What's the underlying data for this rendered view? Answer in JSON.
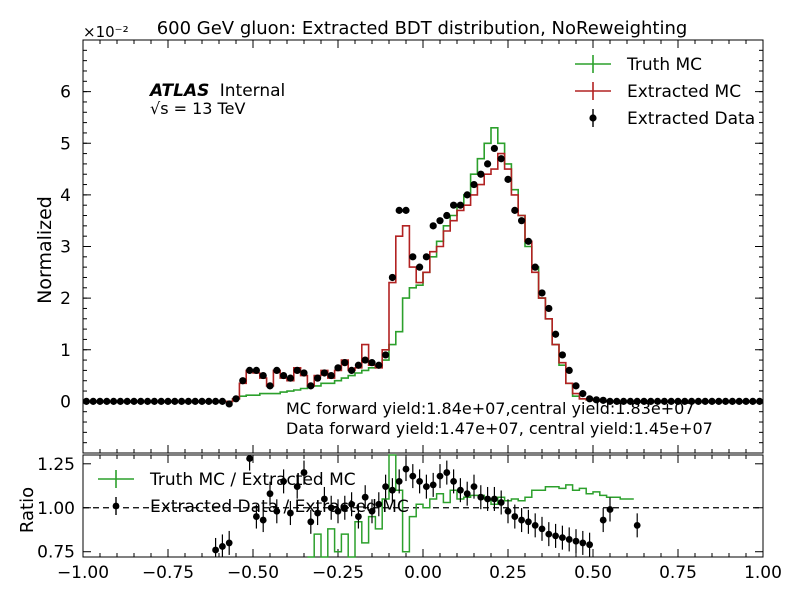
{
  "chart_data": [
    {
      "type": "step-histogram",
      "panel": "main",
      "title": "600 GeV gluon: Extracted BDT distribution, NoReweighting",
      "ylabel": "Normalized",
      "y_scale_label": "×10⁻²",
      "x_range": [
        -1.0,
        1.0
      ],
      "ylim": [
        -1,
        7
      ],
      "yticks": [
        0,
        1,
        2,
        3,
        4,
        5,
        6
      ],
      "ytick_labels": [
        "0",
        "1",
        "2",
        "3",
        "4",
        "5",
        "6"
      ],
      "bin_edges": [
        -1.0,
        -0.98,
        -0.96,
        -0.94,
        -0.92,
        -0.9,
        -0.88,
        -0.86,
        -0.84,
        -0.82,
        -0.8,
        -0.78,
        -0.76,
        -0.74,
        -0.72,
        -0.7,
        -0.68,
        -0.66,
        -0.64,
        -0.62,
        -0.6,
        -0.58,
        -0.56,
        -0.54,
        -0.52,
        -0.5,
        -0.48,
        -0.46,
        -0.44,
        -0.42,
        -0.4,
        -0.38,
        -0.36,
        -0.34,
        -0.32,
        -0.3,
        -0.28,
        -0.26,
        -0.24,
        -0.22,
        -0.2,
        -0.18,
        -0.16,
        -0.14,
        -0.12,
        -0.1,
        -0.08,
        -0.06,
        -0.04,
        -0.02,
        0.0,
        0.02,
        0.04,
        0.06,
        0.08,
        0.1,
        0.12,
        0.14,
        0.16,
        0.18,
        0.2,
        0.22,
        0.24,
        0.26,
        0.28,
        0.3,
        0.32,
        0.34,
        0.36,
        0.38,
        0.4,
        0.42,
        0.44,
        0.46,
        0.48,
        0.5,
        0.52,
        0.54,
        0.56,
        0.58,
        0.6,
        0.62,
        0.64,
        0.66,
        0.68,
        0.7,
        0.72,
        0.74,
        0.76,
        0.78,
        0.8,
        0.82,
        0.84,
        0.86,
        0.88,
        0.9,
        0.92,
        0.94,
        0.96,
        0.98,
        1.0
      ],
      "series": [
        {
          "name": "Truth MC",
          "color": "#2ca02c",
          "style": "step",
          "values": [
            0,
            0,
            0,
            0,
            0,
            0,
            0,
            0,
            0,
            0,
            0,
            0,
            0,
            0,
            0,
            0,
            0,
            0,
            0,
            0,
            0,
            0,
            0.05,
            0.1,
            0.12,
            0.12,
            0.15,
            0.15,
            0.15,
            0.18,
            0.2,
            0.22,
            0.25,
            0.3,
            0.3,
            0.35,
            0.35,
            0.4,
            0.45,
            0.5,
            0.55,
            0.6,
            0.65,
            0.7,
            0.8,
            1.1,
            1.35,
            2.0,
            2.2,
            2.25,
            2.5,
            2.8,
            3.1,
            3.4,
            3.6,
            3.8,
            4.0,
            4.4,
            4.7,
            5.0,
            5.3,
            5.0,
            4.6,
            4.1,
            3.6,
            3.0,
            2.6,
            2.0,
            1.6,
            1.1,
            0.7,
            0.35,
            0.1,
            0.05,
            0.03,
            0.02,
            0.01,
            0,
            0,
            0,
            0,
            0,
            0,
            0,
            0,
            0,
            0,
            0,
            0,
            0,
            0,
            0,
            0,
            0,
            0,
            0,
            0,
            0,
            0,
            0
          ]
        },
        {
          "name": "Extracted MC",
          "color": "#b22222",
          "style": "step",
          "values": [
            0,
            0,
            0,
            0,
            0,
            0,
            0,
            0,
            0,
            0,
            0,
            0,
            0,
            0,
            0,
            0,
            0,
            0,
            0,
            0,
            0,
            0,
            0.05,
            0.35,
            0.6,
            0.55,
            0.45,
            0.3,
            0.6,
            0.45,
            0.4,
            0.65,
            0.5,
            0.3,
            0.5,
            0.6,
            0.45,
            0.6,
            0.8,
            0.6,
            0.65,
            1.1,
            0.7,
            0.65,
            1.0,
            2.3,
            3.2,
            3.4,
            2.6,
            2.3,
            2.5,
            2.9,
            3.0,
            3.3,
            3.5,
            3.7,
            3.8,
            4.0,
            4.2,
            4.4,
            4.5,
            4.8,
            4.5,
            4.0,
            3.6,
            3.1,
            2.5,
            2.0,
            1.6,
            1.1,
            0.75,
            0.35,
            0.15,
            0.05,
            0.03,
            0.02,
            0.01,
            0,
            0,
            0,
            0,
            0,
            0,
            0,
            0,
            0,
            0,
            0,
            0,
            0,
            0,
            0,
            0,
            0,
            0,
            0,
            0,
            0,
            0,
            0
          ]
        }
      ],
      "points": {
        "name": "Extracted Data",
        "color": "#000000",
        "x": [
          -0.99,
          -0.97,
          -0.95,
          -0.93,
          -0.91,
          -0.89,
          -0.87,
          -0.85,
          -0.83,
          -0.81,
          -0.79,
          -0.77,
          -0.75,
          -0.73,
          -0.71,
          -0.69,
          -0.67,
          -0.65,
          -0.63,
          -0.61,
          -0.59,
          -0.57,
          -0.55,
          -0.53,
          -0.51,
          -0.49,
          -0.47,
          -0.45,
          -0.43,
          -0.41,
          -0.39,
          -0.37,
          -0.35,
          -0.33,
          -0.31,
          -0.29,
          -0.27,
          -0.25,
          -0.23,
          -0.21,
          -0.19,
          -0.17,
          -0.15,
          -0.13,
          -0.11,
          -0.09,
          -0.07,
          -0.05,
          -0.03,
          -0.01,
          0.01,
          0.03,
          0.05,
          0.07,
          0.09,
          0.11,
          0.13,
          0.15,
          0.17,
          0.19,
          0.21,
          0.23,
          0.25,
          0.27,
          0.29,
          0.31,
          0.33,
          0.35,
          0.37,
          0.39,
          0.41,
          0.43,
          0.45,
          0.47,
          0.49,
          0.51,
          0.53,
          0.55,
          0.57,
          0.59,
          0.61,
          0.63,
          0.65,
          0.67,
          0.69,
          0.71,
          0.73,
          0.75,
          0.77,
          0.79,
          0.81,
          0.83,
          0.85,
          0.87,
          0.89,
          0.91,
          0.93,
          0.95,
          0.97,
          0.99
        ],
        "y": [
          0,
          0,
          0,
          0,
          0,
          0,
          0,
          0,
          0,
          0,
          0,
          0,
          0,
          0,
          0,
          0,
          0,
          0,
          0,
          0,
          0,
          -0.05,
          0.05,
          0.4,
          0.6,
          0.6,
          0.5,
          0.3,
          0.6,
          0.5,
          0.45,
          0.6,
          0.55,
          0.3,
          0.45,
          0.55,
          0.5,
          0.65,
          0.75,
          0.6,
          0.7,
          0.8,
          0.75,
          0.7,
          0.9,
          2.4,
          3.7,
          3.7,
          2.8,
          2.6,
          2.8,
          3.4,
          3.5,
          3.6,
          3.8,
          3.8,
          4.0,
          4.2,
          4.4,
          4.6,
          4.9,
          4.7,
          4.3,
          3.7,
          3.5,
          3.1,
          2.6,
          2.1,
          1.8,
          1.3,
          0.9,
          0.6,
          0.3,
          0.15,
          0.05,
          0.03,
          0.02,
          0,
          0,
          0,
          0,
          0,
          0,
          0,
          0,
          0,
          0,
          0,
          0,
          0,
          0,
          0,
          0,
          0,
          0,
          0,
          0,
          0,
          0,
          0
        ]
      },
      "legend": {
        "placement": "top-right",
        "entries": [
          "Truth MC",
          "Extracted MC",
          "Extracted Data"
        ]
      },
      "annotations": {
        "atlas": "ATLAS",
        "internal": "Internal",
        "energy": "√s =  13 TeV",
        "mc_yield": "MC forward yield:1.84e+07,central yield:1.83e+07",
        "data_yield": "Data forward yield:1.47e+07, central yield:1.45e+07"
      }
    },
    {
      "type": "step-histogram",
      "panel": "ratio",
      "ylabel": "Ratio",
      "xlim": [
        -1.0,
        1.0
      ],
      "ylim": [
        0.72,
        1.3
      ],
      "yticks": [
        0.75,
        1.0,
        1.25
      ],
      "ytick_labels": [
        "0.75",
        "1.00",
        "1.25"
      ],
      "xticks": [
        -1.0,
        -0.75,
        -0.5,
        -0.25,
        0.0,
        0.25,
        0.5,
        0.75,
        1.0
      ],
      "xtick_labels": [
        "−1.00",
        "−0.75",
        "−0.50",
        "−0.25",
        "0.00",
        "0.25",
        "0.50",
        "0.75",
        "1.00"
      ],
      "reference_line": 1.0,
      "series": [
        {
          "name": "Truth MC / Extracted MC",
          "color": "#2ca02c",
          "style": "step",
          "x_start": -0.34,
          "values": [
            0.72,
            0.85,
            0.72,
            0.88,
            0.75,
            0.85,
            0.72,
            0.92,
            0.8,
            0.95,
            0.88,
            1.05,
            1.3,
            1.1,
            0.75,
            0.95,
            1.02,
            1.0,
            1.05,
            1.08,
            1.03,
            1.1,
            1.05,
            1.06,
            1.07,
            1.07,
            1.05,
            1.02,
            1.06,
            1.04,
            1.05,
            1.04,
            1.06,
            1.1,
            1.1,
            1.12,
            1.12,
            1.11,
            1.13,
            1.1,
            1.11,
            1.08,
            1.09,
            1.07,
            1.06,
            1.06,
            1.05,
            1.05
          ]
        },
        {
          "name": "Extracted Data / Extracted MC",
          "color": "#000000",
          "style": "points",
          "x": [
            -0.61,
            -0.59,
            -0.57,
            -0.51,
            -0.49,
            -0.47,
            -0.45,
            -0.43,
            -0.41,
            -0.39,
            -0.37,
            -0.35,
            -0.33,
            -0.31,
            -0.29,
            -0.27,
            -0.25,
            -0.23,
            -0.21,
            -0.19,
            -0.17,
            -0.15,
            -0.13,
            -0.11,
            -0.09,
            -0.07,
            -0.05,
            -0.03,
            -0.01,
            0.01,
            0.03,
            0.05,
            0.07,
            0.09,
            0.11,
            0.13,
            0.15,
            0.17,
            0.19,
            0.21,
            0.23,
            0.25,
            0.27,
            0.29,
            0.31,
            0.33,
            0.35,
            0.37,
            0.39,
            0.41,
            0.43,
            0.45,
            0.47,
            0.49,
            0.53,
            0.55,
            0.63
          ],
          "y": [
            0.76,
            0.78,
            0.8,
            1.28,
            0.95,
            0.93,
            1.08,
            0.98,
            1.15,
            0.97,
            1.12,
            1.2,
            0.92,
            0.97,
            1.05,
            1.0,
            0.98,
            1.0,
            1.02,
            0.95,
            1.06,
            0.98,
            1.02,
            1.12,
            1.1,
            1.15,
            1.22,
            1.18,
            1.15,
            1.12,
            1.13,
            1.18,
            1.2,
            1.15,
            1.1,
            1.08,
            1.12,
            1.06,
            1.05,
            1.05,
            1.03,
            0.98,
            0.95,
            0.93,
            0.92,
            0.9,
            0.88,
            0.85,
            0.84,
            0.83,
            0.82,
            0.81,
            0.8,
            0.79,
            0.93,
            0.99,
            0.9
          ]
        }
      ],
      "legend": {
        "placement": "top-left",
        "entries": [
          "Truth MC / Extracted MC",
          "Extracted Data / Extracted MC"
        ]
      }
    }
  ]
}
